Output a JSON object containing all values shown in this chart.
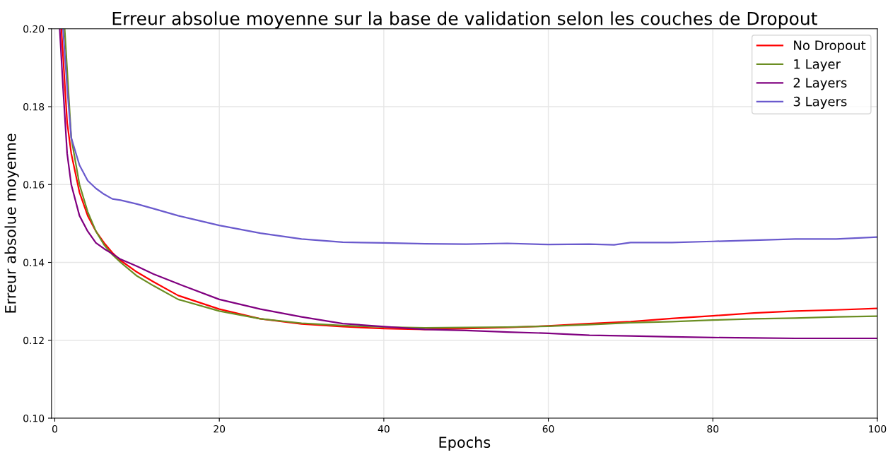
{
  "chart_data": {
    "type": "line",
    "title": "Erreur absolue moyenne sur la base de validation selon les couches de Dropout",
    "xlabel": "Epochs",
    "ylabel": "Erreur absolue moyenne",
    "xlim": [
      -0.4,
      100
    ],
    "ylim": [
      0.1,
      0.2
    ],
    "xticks": [
      0,
      20,
      40,
      60,
      80,
      100
    ],
    "yticks": [
      {
        "value": 0.1,
        "label": "0.10"
      },
      {
        "value": 0.12,
        "label": "0.12"
      },
      {
        "value": 0.14,
        "label": "0.14"
      },
      {
        "value": 0.16,
        "label": "0.16"
      },
      {
        "value": 0.18,
        "label": "0.18"
      },
      {
        "value": 0.2,
        "label": "0.20"
      }
    ],
    "grid": true,
    "legend": "top right",
    "marker": "none",
    "line_style": "solid",
    "series": [
      {
        "name": "No Dropout",
        "color": "#ff0000",
        "x": [
          0.8,
          1.5,
          2,
          3,
          4,
          5,
          6,
          7,
          8,
          10,
          12,
          15,
          20,
          25,
          30,
          35,
          40,
          45,
          50,
          55,
          60,
          65,
          70,
          75,
          80,
          85,
          90,
          95,
          100
        ],
        "values": [
          0.2,
          0.176,
          0.168,
          0.158,
          0.152,
          0.148,
          0.145,
          0.1425,
          0.1405,
          0.1375,
          0.135,
          0.1315,
          0.128,
          0.1255,
          0.1242,
          0.1235,
          0.123,
          0.1228,
          0.123,
          0.1233,
          0.1237,
          0.1243,
          0.1248,
          0.1256,
          0.1263,
          0.127,
          0.1275,
          0.1278,
          0.1282
        ]
      },
      {
        "name": "1 Layer",
        "color": "#6b8e23",
        "x": [
          1.2,
          2,
          3,
          4,
          5,
          6,
          7,
          8,
          10,
          12,
          15,
          20,
          25,
          30,
          35,
          40,
          45,
          50,
          55,
          60,
          65,
          70,
          75,
          80,
          85,
          90,
          95,
          100
        ],
        "values": [
          0.2,
          0.172,
          0.16,
          0.153,
          0.148,
          0.1445,
          0.142,
          0.14,
          0.1365,
          0.134,
          0.1305,
          0.1275,
          0.1255,
          0.1244,
          0.1238,
          0.1234,
          0.1232,
          0.1233,
          0.1234,
          0.1236,
          0.124,
          0.1245,
          0.1248,
          0.1252,
          0.1255,
          0.1257,
          0.126,
          0.1262
        ]
      },
      {
        "name": "2 Layers",
        "color": "#800080",
        "x": [
          0.6,
          1,
          1.5,
          2,
          3,
          4,
          5,
          6,
          7,
          8,
          10,
          12,
          15,
          20,
          25,
          30,
          35,
          40,
          45,
          50,
          54,
          55,
          60,
          65,
          70,
          75,
          80,
          85,
          90,
          95,
          100
        ],
        "values": [
          0.2,
          0.185,
          0.168,
          0.16,
          0.152,
          0.148,
          0.145,
          0.1435,
          0.1422,
          0.1408,
          0.139,
          0.137,
          0.1345,
          0.1305,
          0.128,
          0.126,
          0.1243,
          0.1235,
          0.1228,
          0.1225,
          0.1222,
          0.1221,
          0.1218,
          0.1213,
          0.1211,
          0.1209,
          0.1207,
          0.1206,
          0.1205,
          0.1205,
          0.1205
        ]
      },
      {
        "name": "3 Layers",
        "color": "#6a5acd",
        "x": [
          1.0,
          1.5,
          2,
          3,
          4,
          5,
          6,
          7,
          8,
          10,
          12,
          15,
          17,
          20,
          25,
          30,
          35,
          40,
          45,
          50,
          55,
          60,
          65,
          68,
          70,
          75,
          80,
          85,
          90,
          95,
          100
        ],
        "values": [
          0.2,
          0.185,
          0.172,
          0.165,
          0.161,
          0.159,
          0.1575,
          0.1563,
          0.156,
          0.155,
          0.1538,
          0.152,
          0.151,
          0.1495,
          0.1475,
          0.146,
          0.1452,
          0.145,
          0.1448,
          0.1447,
          0.1449,
          0.1446,
          0.1447,
          0.1445,
          0.1451,
          0.1451,
          0.1454,
          0.1457,
          0.146,
          0.146,
          0.1465
        ]
      }
    ]
  }
}
